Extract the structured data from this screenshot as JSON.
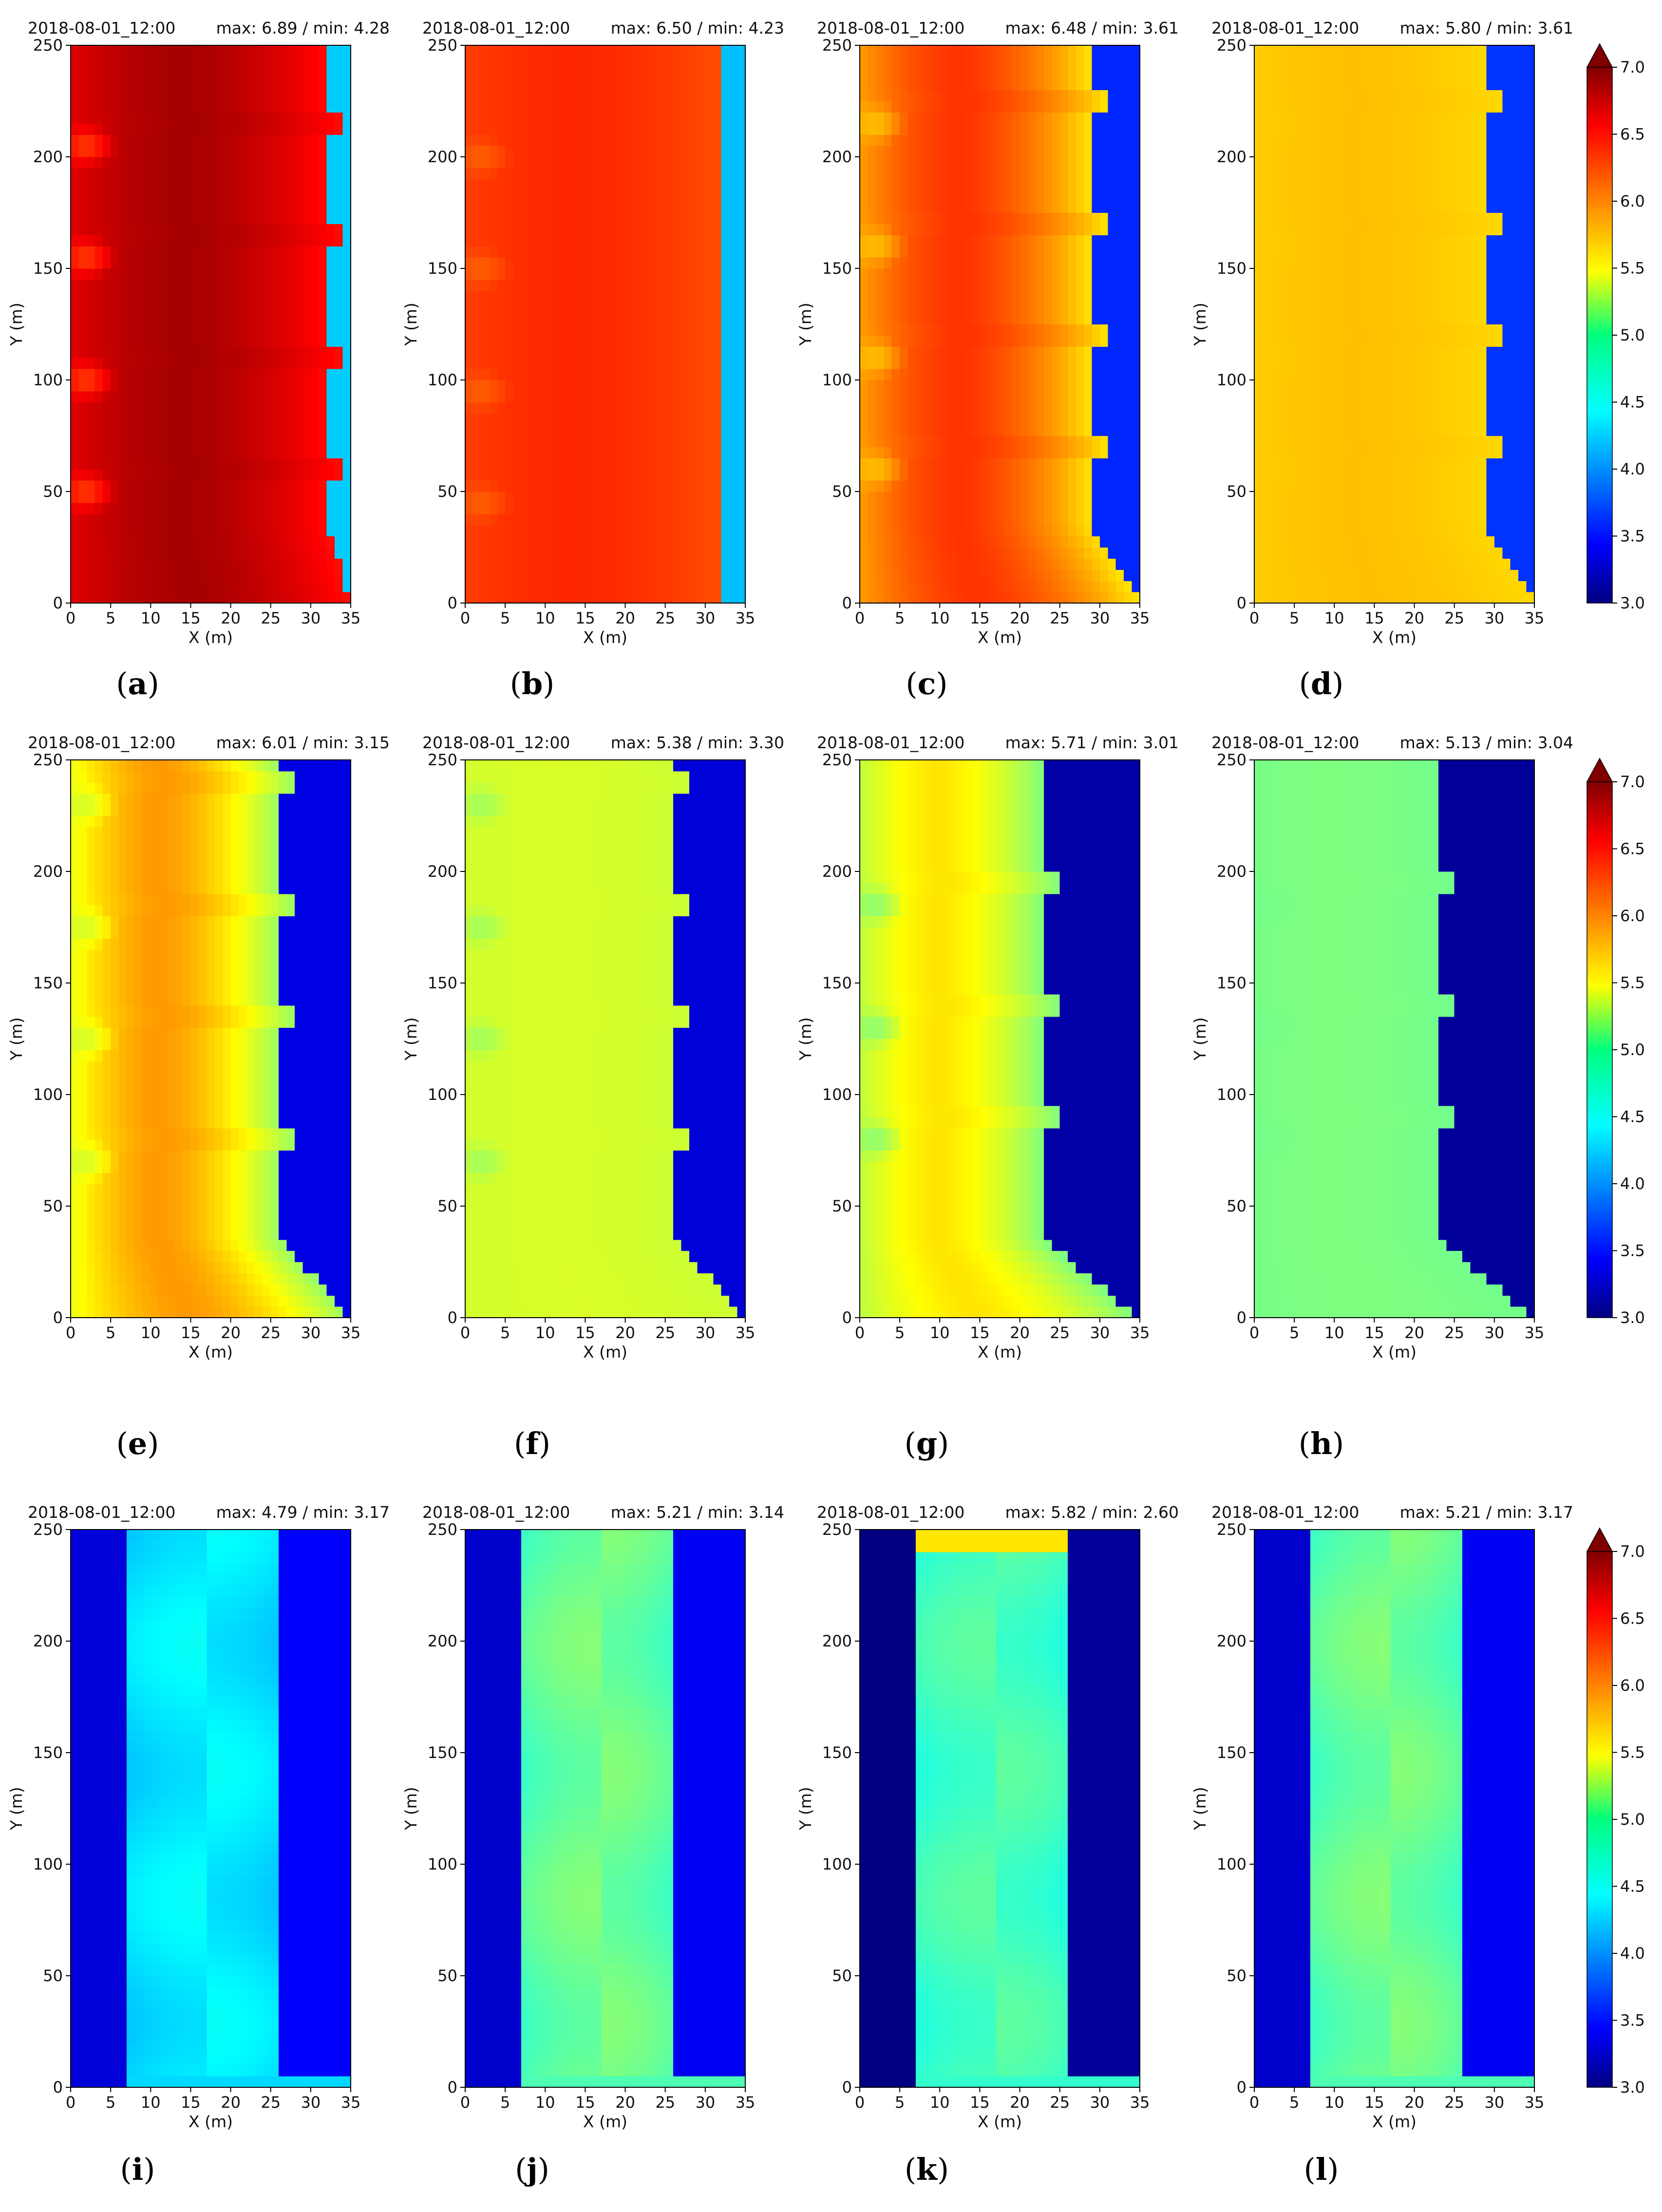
{
  "chart_data": [
    {
      "id": "a",
      "type": "heatmap",
      "caption": "(a)",
      "timestamp": "2018-08-01_12:00",
      "stats": "max: 6.89 / min: 4.28",
      "xlabel": "X (m)",
      "ylabel": "Y (m)",
      "xlim": [
        0,
        35
      ],
      "ylim": [
        0,
        250
      ],
      "x_ticks": [
        0,
        5,
        10,
        15,
        20,
        25,
        30,
        35
      ],
      "y_ticks": [
        0,
        50,
        100,
        150,
        200,
        250
      ],
      "field": {
        "pattern": "band",
        "edge_left": 0,
        "edge_right": 32,
        "center": 6.85,
        "edge": 6.45,
        "outside": 4.3,
        "step": "right",
        "bumps": [
          60,
          110,
          165,
          215
        ],
        "bump_v": 6.2
      }
    },
    {
      "id": "b",
      "type": "heatmap",
      "caption": "(b)",
      "timestamp": "2018-08-01_12:00",
      "stats": "max: 6.50 / min: 4.23",
      "xlabel": "X (m)",
      "ylabel": "Y (m)",
      "xlim": [
        0,
        35
      ],
      "ylim": [
        0,
        250
      ],
      "x_ticks": [
        0,
        5,
        10,
        15,
        20,
        25,
        30,
        35
      ],
      "y_ticks": [
        0,
        50,
        100,
        150,
        200,
        250
      ],
      "field": {
        "pattern": "band",
        "edge_left": 0,
        "edge_right": 32,
        "center": 6.35,
        "edge": 6.2,
        "outside": 4.25,
        "step": "none",
        "bumps": [
          55,
          105,
          160,
          210
        ],
        "bump_v": 6.1
      }
    },
    {
      "id": "c",
      "type": "heatmap",
      "caption": "(c)",
      "timestamp": "2018-08-01_12:00",
      "stats": "max: 6.48 / min: 3.61",
      "xlabel": "X (m)",
      "ylabel": "Y (m)",
      "xlim": [
        0,
        35
      ],
      "ylim": [
        0,
        250
      ],
      "x_ticks": [
        0,
        5,
        10,
        15,
        20,
        25,
        30,
        35
      ],
      "y_ticks": [
        0,
        50,
        100,
        150,
        200,
        250
      ],
      "field": {
        "pattern": "band",
        "edge_left": 0,
        "edge_right": 29,
        "center": 6.3,
        "edge": 5.6,
        "outside": 3.65,
        "step": "right",
        "bumps": [
          70,
          120,
          170,
          225
        ],
        "bump_v": 5.7
      }
    },
    {
      "id": "d",
      "type": "heatmap",
      "caption": "(d)",
      "timestamp": "2018-08-01_12:00",
      "stats": "max: 5.80 / min: 3.61",
      "xlabel": "X (m)",
      "ylabel": "Y (m)",
      "xlim": [
        0,
        35
      ],
      "ylim": [
        0,
        250
      ],
      "x_ticks": [
        0,
        5,
        10,
        15,
        20,
        25,
        30,
        35
      ],
      "y_ticks": [
        0,
        50,
        100,
        150,
        200,
        250
      ],
      "field": {
        "pattern": "band",
        "edge_left": 0,
        "edge_right": 29,
        "center": 5.75,
        "edge": 5.65,
        "outside": 3.7,
        "step": "right",
        "bumps": [
          70,
          120,
          170,
          225
        ],
        "bump_v": 5.7
      }
    },
    {
      "id": "e",
      "type": "heatmap",
      "caption": "(e)",
      "timestamp": "2018-08-01_12:00",
      "stats": "max: 6.01 / min: 3.15",
      "xlabel": "X (m)",
      "ylabel": "Y (m)",
      "xlim": [
        0,
        35
      ],
      "ylim": [
        0,
        250
      ],
      "x_ticks": [
        0,
        5,
        10,
        15,
        20,
        25,
        30,
        35
      ],
      "y_ticks": [
        0,
        50,
        100,
        150,
        200,
        250
      ],
      "field": {
        "pattern": "band",
        "edge_left": 0,
        "edge_right": 26,
        "center": 5.9,
        "edge": 5.1,
        "outside": 3.4,
        "step": "right",
        "bumps": [
          80,
          135,
          185,
          240
        ],
        "bump_v": 5.3
      }
    },
    {
      "id": "f",
      "type": "heatmap",
      "caption": "(f)",
      "timestamp": "2018-08-01_12:00",
      "stats": "max: 5.38 / min: 3.30",
      "xlabel": "X (m)",
      "ylabel": "Y (m)",
      "xlim": [
        0,
        35
      ],
      "ylim": [
        0,
        250
      ],
      "x_ticks": [
        0,
        5,
        10,
        15,
        20,
        25,
        30,
        35
      ],
      "y_ticks": [
        0,
        50,
        100,
        150,
        200,
        250
      ],
      "field": {
        "pattern": "band",
        "edge_left": 0,
        "edge_right": 26,
        "center": 5.35,
        "edge": 5.3,
        "outside": 3.35,
        "step": "right",
        "bumps": [
          80,
          135,
          185,
          240
        ],
        "bump_v": 5.1
      }
    },
    {
      "id": "g",
      "type": "heatmap",
      "caption": "(g)",
      "timestamp": "2018-08-01_12:00",
      "stats": "max: 5.71 / min: 3.01",
      "xlabel": "X (m)",
      "ylabel": "Y (m)",
      "xlim": [
        0,
        35
      ],
      "ylim": [
        0,
        250
      ],
      "x_ticks": [
        0,
        5,
        10,
        15,
        20,
        25,
        30,
        35
      ],
      "y_ticks": [
        0,
        50,
        100,
        150,
        200,
        250
      ],
      "field": {
        "pattern": "band",
        "edge_left": 0,
        "edge_right": 23,
        "center": 5.6,
        "edge": 5.0,
        "outside": 3.15,
        "step": "right",
        "bumps": [
          90,
          140,
          195
        ],
        "bump_v": 5.0
      }
    },
    {
      "id": "h",
      "type": "heatmap",
      "caption": "(h)",
      "timestamp": "2018-08-01_12:00",
      "stats": "max: 5.13 / min: 3.04",
      "xlabel": "X (m)",
      "ylabel": "Y (m)",
      "xlim": [
        0,
        35
      ],
      "ylim": [
        0,
        250
      ],
      "x_ticks": [
        0,
        5,
        10,
        15,
        20,
        25,
        30,
        35
      ],
      "y_ticks": [
        0,
        50,
        100,
        150,
        200,
        250
      ],
      "field": {
        "pattern": "band",
        "edge_left": 0,
        "edge_right": 23,
        "center": 5.0,
        "edge": 4.95,
        "outside": 3.1,
        "step": "right",
        "bumps": [
          90,
          140,
          195
        ],
        "bump_v": 4.95
      }
    },
    {
      "id": "i",
      "type": "heatmap",
      "caption": "(i)",
      "timestamp": "2018-08-01_12:00",
      "stats": "max: 4.79 / min: 3.17",
      "xlabel": "X (m)",
      "ylabel": "Y (m)",
      "xlim": [
        0,
        35
      ],
      "ylim": [
        0,
        250
      ],
      "x_ticks": [
        0,
        5,
        10,
        15,
        20,
        25,
        30,
        35
      ],
      "y_ticks": [
        0,
        50,
        100,
        150,
        200,
        250
      ],
      "field": {
        "pattern": "street",
        "edge_left": 7,
        "edge_right": 26,
        "center": 4.45,
        "edge": 4.35,
        "outside": 3.5,
        "step": "none",
        "bumps": [],
        "bump_v": 4.3
      }
    },
    {
      "id": "j",
      "type": "heatmap",
      "caption": "(j)",
      "timestamp": "2018-08-01_12:00",
      "stats": "max: 5.21 / min: 3.14",
      "xlabel": "X (m)",
      "ylabel": "Y (m)",
      "xlim": [
        0,
        35
      ],
      "ylim": [
        0,
        250
      ],
      "x_ticks": [
        0,
        5,
        10,
        15,
        20,
        25,
        30,
        35
      ],
      "y_ticks": [
        0,
        50,
        100,
        150,
        200,
        250
      ],
      "field": {
        "pattern": "street",
        "edge_left": 7,
        "edge_right": 26,
        "center": 4.95,
        "edge": 4.8,
        "outside": 3.45,
        "step": "none",
        "bumps": [],
        "bump_v": 4.6
      }
    },
    {
      "id": "k",
      "type": "heatmap",
      "caption": "(k)",
      "timestamp": "2018-08-01_12:00",
      "stats": "max: 5.82 / min: 2.60",
      "xlabel": "X (m)",
      "ylabel": "Y (m)",
      "xlim": [
        0,
        35
      ],
      "ylim": [
        0,
        250
      ],
      "x_ticks": [
        0,
        5,
        10,
        15,
        20,
        25,
        30,
        35
      ],
      "y_ticks": [
        0,
        50,
        100,
        150,
        200,
        250
      ],
      "field": {
        "pattern": "street",
        "edge_left": 7,
        "edge_right": 26,
        "center": 4.8,
        "edge": 4.7,
        "outside": 3.1,
        "step": "none",
        "bumps": [],
        "bump_v": 4.6,
        "top_hot": 5.6
      }
    },
    {
      "id": "l",
      "type": "heatmap",
      "caption": "(l)",
      "timestamp": "2018-08-01_12:00",
      "stats": "max: 5.21 / min: 3.17",
      "xlabel": "X (m)",
      "ylabel": "Y (m)",
      "xlim": [
        0,
        35
      ],
      "ylim": [
        0,
        250
      ],
      "x_ticks": [
        0,
        5,
        10,
        15,
        20,
        25,
        30,
        35
      ],
      "y_ticks": [
        0,
        50,
        100,
        150,
        200,
        250
      ],
      "field": {
        "pattern": "street",
        "edge_left": 7,
        "edge_right": 26,
        "center": 4.95,
        "edge": 4.8,
        "outside": 3.45,
        "step": "none",
        "bumps": [],
        "bump_v": 4.6
      }
    }
  ],
  "colorbar": {
    "colormap": "jet",
    "min": 3.0,
    "max": 7.0,
    "extend": "max",
    "ticks": [
      "3.0",
      "3.5",
      "4.0",
      "4.5",
      "5.0",
      "5.5",
      "6.0",
      "6.5",
      "7.0"
    ]
  }
}
